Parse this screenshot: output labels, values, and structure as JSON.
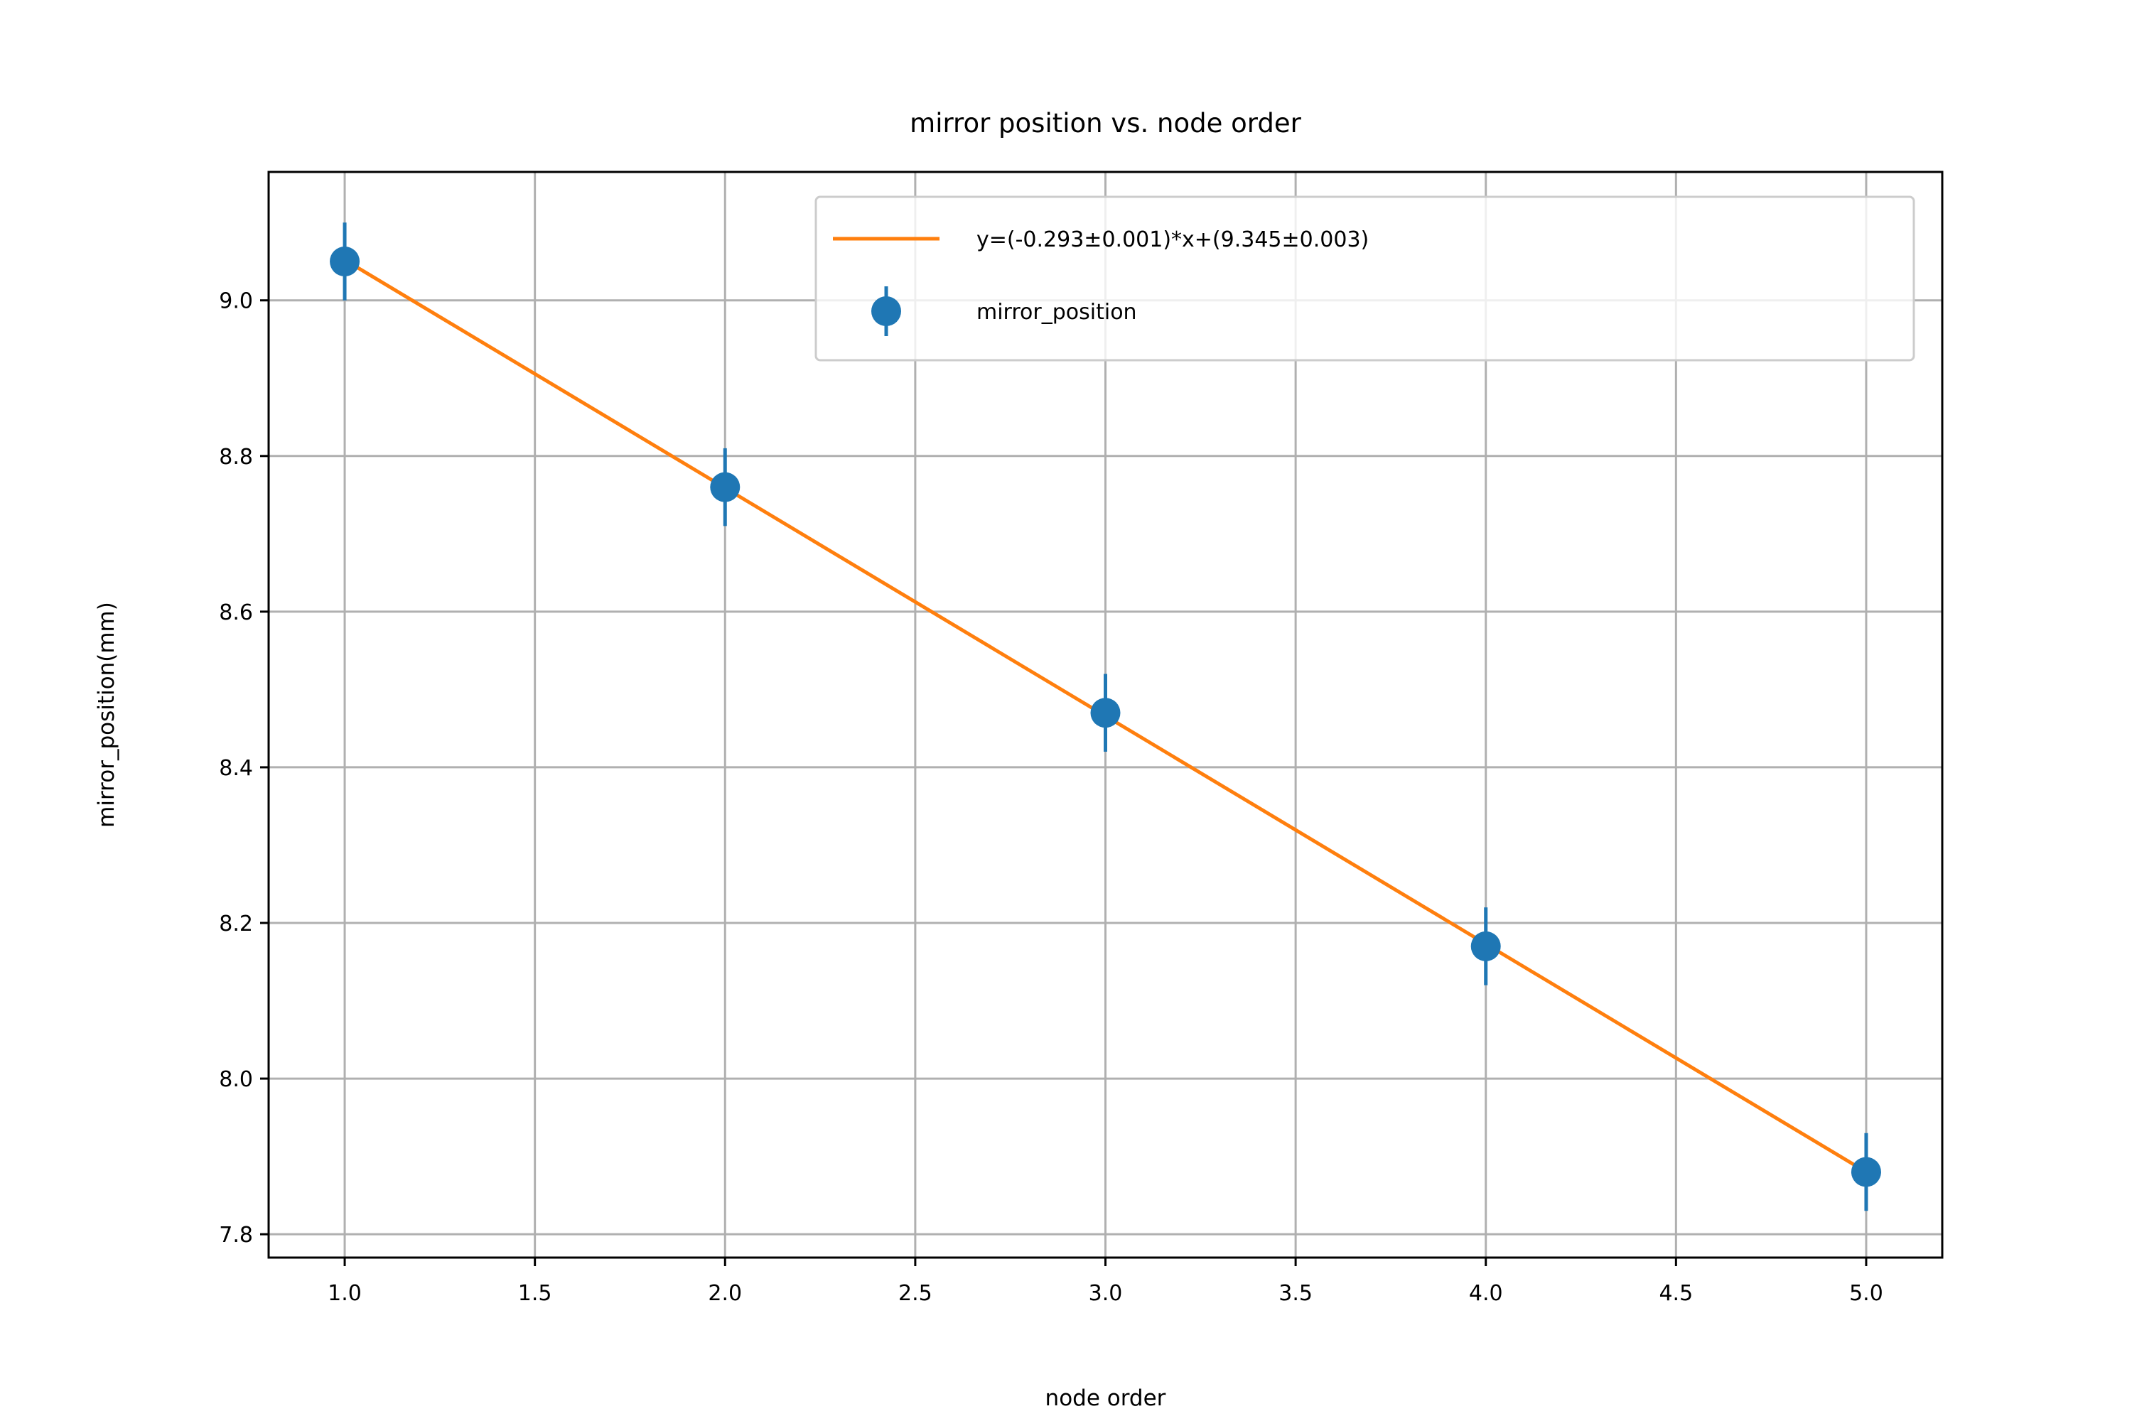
{
  "chart_data": {
    "type": "scatter",
    "title": "mirror position vs. node order",
    "xlabel": "node order",
    "ylabel": "mirror_position(mm)",
    "xlim": [
      0.8,
      5.2
    ],
    "ylim": [
      7.77,
      9.165
    ],
    "grid": true,
    "legend_position": "top-right",
    "x_ticks": [
      "1.0",
      "1.5",
      "2.0",
      "2.5",
      "3.0",
      "3.5",
      "4.0",
      "4.5",
      "5.0"
    ],
    "y_ticks": [
      "7.8",
      "8.0",
      "8.2",
      "8.4",
      "8.6",
      "8.8",
      "9.0"
    ],
    "series": [
      {
        "name": "mirror_position",
        "kind": "errorbar",
        "color": "#1f77b4",
        "x": [
          1,
          2,
          3,
          4,
          5
        ],
        "y": [
          9.05,
          8.76,
          8.47,
          8.17,
          7.88
        ],
        "yerr": [
          0.05,
          0.05,
          0.05,
          0.05,
          0.05
        ]
      },
      {
        "name": "y=(-0.293±0.001)*x+(9.345±0.003)",
        "kind": "line",
        "color": "#ff7f0e",
        "slope": -0.293,
        "intercept": 9.345,
        "x_range": [
          1,
          5
        ]
      }
    ]
  }
}
